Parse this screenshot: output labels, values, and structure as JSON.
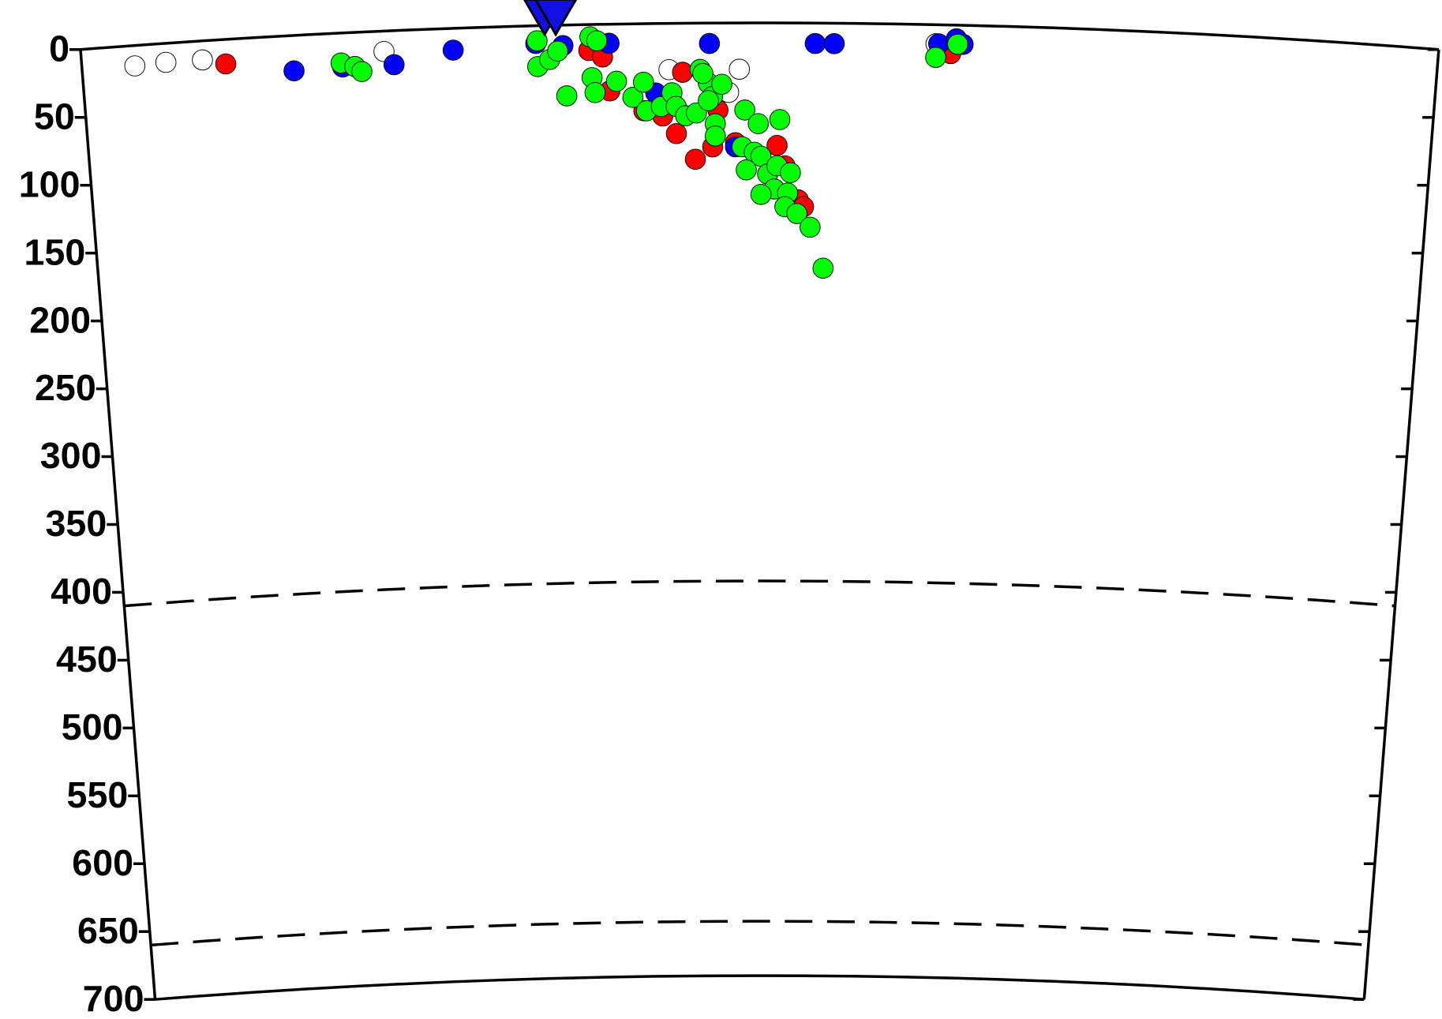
{
  "chart_data": {
    "type": "scatter",
    "xlim": [
      0,
      100
    ],
    "ylim": [
      0,
      700
    ],
    "yticks": [
      0,
      50,
      100,
      150,
      200,
      250,
      300,
      350,
      400,
      450,
      500,
      550,
      600,
      650,
      700
    ],
    "reference_depths": [
      410,
      660
    ],
    "station": {
      "x": 35,
      "color": "#1010e0"
    },
    "series": [
      {
        "color": "#ffffff",
        "x": [
          3.9,
          6.2,
          8.9,
          22.3,
          43.3,
          48.5,
          47.7,
          63
        ],
        "values": [
          15,
          14,
          14,
          15,
          34,
          34,
          51,
          14
        ]
      },
      {
        "color": "#ff0000",
        "x": [
          10.6,
          37.4,
          38.4,
          38.9,
          44.3,
          41.4,
          42.8,
          43.8,
          45.2,
          46.5,
          46.9,
          48.2,
          51.3,
          51.9,
          52.9,
          53.3,
          64.1
        ],
        "values": [
          18,
          19,
          24,
          49,
          36,
          64,
          68,
          81,
          100,
          91,
          64,
          88,
          90,
          105,
          130,
          135,
          21
        ]
      },
      {
        "color": "#0000ff",
        "x": [
          15.6,
          19.2,
          23,
          27.4,
          33.5,
          35.5,
          38.9,
          46.3,
          54.1,
          55.5,
          63.2,
          64.5,
          65,
          42.3,
          48.2
        ],
        "values": [
          26,
          25,
          25,
          16,
          13,
          15,
          14,
          15,
          15,
          15,
          14,
          10,
          14,
          51,
          91
        ]
      },
      {
        "color": "#00ff00",
        "x": [
          19.1,
          20.1,
          20.6,
          33.6,
          33.6,
          34.5,
          35.1,
          35.7,
          37.5,
          38,
          37.6,
          37.8,
          39.4,
          40.6,
          41.4,
          41.6,
          42.7,
          43.5,
          43.8,
          44.5,
          45.3,
          45.6,
          46.2,
          46.5,
          47.2,
          46.7,
          46.7,
          45.8,
          46.2,
          48.9,
          49.9,
          51.5,
          48.7,
          49.6,
          50.1,
          49,
          50.6,
          51.3,
          52.3,
          51.1,
          52.1,
          50.1,
          51.9,
          52.8,
          53.8,
          54.8,
          63,
          64.6
        ],
        "values": [
          22,
          25,
          29,
          11,
          30,
          25,
          19,
          52,
          9,
          12,
          39,
          50,
          42,
          54,
          43,
          64,
          61,
          51,
          61,
          68,
          66,
          34,
          44,
          54,
          45,
          74,
          83,
          37,
          57,
          64,
          74,
          71,
          91,
          95,
          98,
          108,
          111,
          105,
          110,
          122,
          125,
          126,
          135,
          140,
          150,
          180,
          24,
          14
        ]
      }
    ]
  }
}
